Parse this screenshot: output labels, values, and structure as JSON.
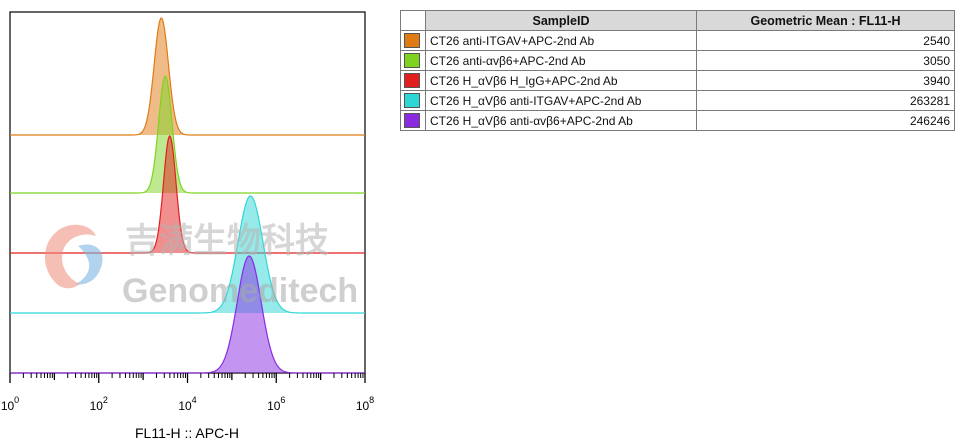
{
  "chart_data": {
    "type": "histogram-overlay",
    "xlabel": "FL11-H :: APC-H",
    "x_scale": "log10",
    "xlim": [
      1,
      100000000
    ],
    "x_ticks": [
      {
        "base": "10",
        "exp": "0",
        "value": 1
      },
      {
        "base": "10",
        "exp": "2",
        "value": 100
      },
      {
        "base": "10",
        "exp": "4",
        "value": 10000
      },
      {
        "base": "10",
        "exp": "6",
        "value": 1000000
      },
      {
        "base": "10",
        "exp": "8",
        "value": 100000000
      }
    ],
    "table": {
      "headers": [
        "SampleID",
        "Geometric Mean : FL11-H"
      ]
    },
    "series": [
      {
        "name": "CT26 anti-ITGAV+APC-2nd Ab",
        "geometric_mean": "2540",
        "color": "#e07a12",
        "peak_log10": 3.41,
        "width_log10": 0.16
      },
      {
        "name": "CT26 anti-αvβ6+APC-2nd Ab",
        "geometric_mean": "3050",
        "color": "#7ed321",
        "peak_log10": 3.5,
        "width_log10": 0.15
      },
      {
        "name": "CT26 H_αVβ6 H_IgG+APC-2nd Ab",
        "geometric_mean": "3940",
        "color": "#e31e1e",
        "peak_log10": 3.6,
        "width_log10": 0.14
      },
      {
        "name": "CT26 H_αVβ6 anti-ITGAV+APC-2nd Ab",
        "geometric_mean": "263281",
        "color": "#2fd6d6",
        "peak_log10": 5.42,
        "width_log10": 0.28
      },
      {
        "name": "CT26 H_αVβ6 anti-αvβ6+APC-2nd Ab",
        "geometric_mean": "246246",
        "color": "#8a2be2",
        "peak_log10": 5.39,
        "width_log10": 0.27
      }
    ]
  },
  "watermark": {
    "chinese": "吉满生物科技",
    "english": "Genomeditech"
  }
}
